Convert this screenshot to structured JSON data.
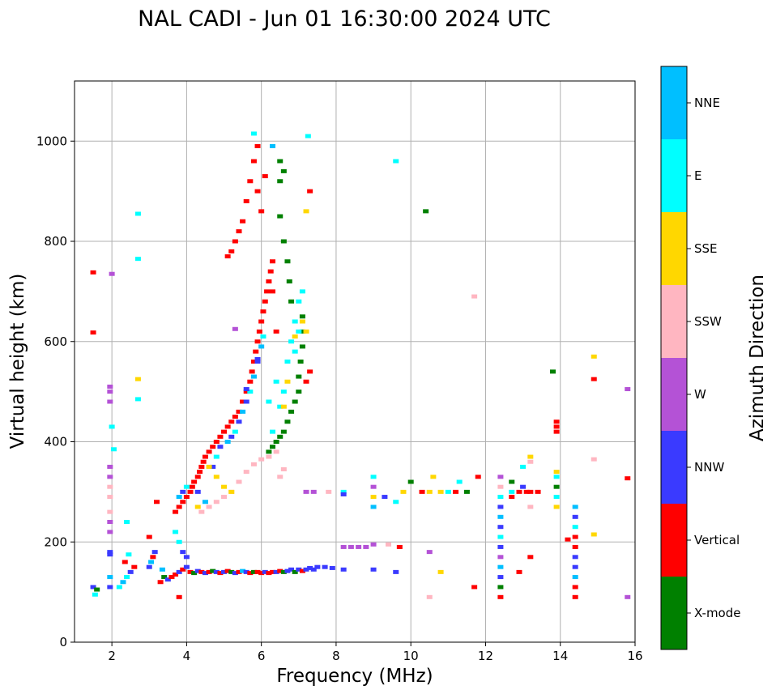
{
  "chart_data": {
    "type": "scatter",
    "title": "NAL CADI - Jun 01 16:30:00 2024 UTC",
    "xlabel": "Frequency (MHz)",
    "ylabel": "Virtual height (km)",
    "xlim": [
      1,
      16
    ],
    "ylim": [
      0,
      1120
    ],
    "xticks": [
      2,
      4,
      6,
      8,
      10,
      12,
      14,
      16
    ],
    "yticks": [
      0,
      200,
      400,
      600,
      800,
      1000
    ],
    "grid": true,
    "colorbar": {
      "label": "Azimuth Direction",
      "categories": [
        "X-mode",
        "Vertical",
        "NNW",
        "W",
        "SSW",
        "SSE",
        "E",
        "NNE"
      ],
      "colors": [
        "#008000",
        "#ff0000",
        "#3a3aff",
        "#b452d6",
        "#ffb6c1",
        "#ffd700",
        "#00ffff",
        "#00bfff"
      ]
    },
    "points": [
      [
        1.5,
        110,
        2
      ],
      [
        1.6,
        105,
        0
      ],
      [
        1.55,
        95,
        6
      ],
      [
        1.5,
        618,
        1
      ],
      [
        1.5,
        738,
        1
      ],
      [
        1.95,
        110,
        2
      ],
      [
        1.95,
        130,
        7
      ],
      [
        1.95,
        175,
        2
      ],
      [
        1.95,
        180,
        2
      ],
      [
        1.95,
        220,
        3
      ],
      [
        1.95,
        240,
        3
      ],
      [
        1.95,
        260,
        4
      ],
      [
        1.95,
        290,
        4
      ],
      [
        1.95,
        310,
        4
      ],
      [
        1.95,
        330,
        3
      ],
      [
        1.95,
        350,
        3
      ],
      [
        1.95,
        480,
        3
      ],
      [
        1.95,
        500,
        3
      ],
      [
        1.95,
        510,
        3
      ],
      [
        2.0,
        735,
        3
      ],
      [
        2.0,
        430,
        6
      ],
      [
        2.05,
        385,
        6
      ],
      [
        2.2,
        110,
        6
      ],
      [
        2.3,
        120,
        7
      ],
      [
        2.4,
        130,
        6
      ],
      [
        2.5,
        140,
        2
      ],
      [
        2.6,
        150,
        1
      ],
      [
        2.35,
        160,
        1
      ],
      [
        2.45,
        175,
        6
      ],
      [
        2.4,
        240,
        6
      ],
      [
        2.7,
        855,
        6
      ],
      [
        2.7,
        765,
        6
      ],
      [
        2.7,
        485,
        6
      ],
      [
        2.7,
        525,
        5
      ],
      [
        3.0,
        150,
        2
      ],
      [
        3.05,
        160,
        7
      ],
      [
        3.1,
        170,
        1
      ],
      [
        3.15,
        180,
        2
      ],
      [
        3.0,
        210,
        1
      ],
      [
        3.2,
        280,
        1
      ],
      [
        3.3,
        120,
        1
      ],
      [
        3.35,
        145,
        7
      ],
      [
        3.4,
        130,
        0
      ],
      [
        3.5,
        125,
        2
      ],
      [
        3.6,
        130,
        1
      ],
      [
        3.7,
        135,
        1
      ],
      [
        3.8,
        140,
        2
      ],
      [
        3.9,
        145,
        1
      ],
      [
        4.0,
        150,
        2
      ],
      [
        4.1,
        140,
        1
      ],
      [
        4.2,
        138,
        0
      ],
      [
        4.3,
        142,
        2
      ],
      [
        4.4,
        140,
        1
      ],
      [
        4.5,
        138,
        2
      ],
      [
        4.6,
        140,
        1
      ],
      [
        4.7,
        142,
        0
      ],
      [
        4.8,
        140,
        2
      ],
      [
        4.9,
        138,
        1
      ],
      [
        5.0,
        140,
        2
      ],
      [
        5.1,
        142,
        1
      ],
      [
        5.2,
        140,
        0
      ],
      [
        5.3,
        138,
        2
      ],
      [
        5.4,
        140,
        1
      ],
      [
        5.5,
        142,
        7
      ],
      [
        5.6,
        140,
        2
      ],
      [
        5.7,
        138,
        1
      ],
      [
        5.8,
        140,
        0
      ],
      [
        5.9,
        140,
        1
      ],
      [
        6.0,
        138,
        1
      ],
      [
        6.1,
        140,
        2
      ],
      [
        6.2,
        138,
        1
      ],
      [
        6.3,
        140,
        1
      ],
      [
        6.4,
        140,
        2
      ],
      [
        6.5,
        142,
        1
      ],
      [
        6.6,
        140,
        0
      ],
      [
        6.7,
        142,
        2
      ],
      [
        6.8,
        145,
        2
      ],
      [
        6.9,
        140,
        0
      ],
      [
        7.0,
        145,
        2
      ],
      [
        7.1,
        142,
        1
      ],
      [
        7.2,
        145,
        2
      ],
      [
        7.3,
        148,
        2
      ],
      [
        7.4,
        145,
        2
      ],
      [
        7.5,
        150,
        2
      ],
      [
        7.7,
        150,
        2
      ],
      [
        7.9,
        148,
        2
      ],
      [
        8.2,
        145,
        2
      ],
      [
        3.8,
        90,
        1
      ],
      [
        3.7,
        220,
        6
      ],
      [
        3.8,
        200,
        6
      ],
      [
        3.9,
        180,
        2
      ],
      [
        4.0,
        170,
        2
      ],
      [
        3.7,
        260,
        1
      ],
      [
        3.8,
        270,
        1
      ],
      [
        3.9,
        280,
        1
      ],
      [
        4.0,
        290,
        1
      ],
      [
        4.1,
        300,
        1
      ],
      [
        4.15,
        310,
        1
      ],
      [
        4.2,
        320,
        1
      ],
      [
        4.3,
        330,
        1
      ],
      [
        4.35,
        340,
        1
      ],
      [
        4.4,
        350,
        1
      ],
      [
        4.45,
        360,
        1
      ],
      [
        4.5,
        370,
        1
      ],
      [
        4.6,
        380,
        1
      ],
      [
        4.7,
        390,
        1
      ],
      [
        4.8,
        400,
        1
      ],
      [
        4.9,
        410,
        1
      ],
      [
        5.0,
        420,
        1
      ],
      [
        5.1,
        430,
        1
      ],
      [
        5.2,
        440,
        1
      ],
      [
        5.3,
        450,
        1
      ],
      [
        5.4,
        460,
        1
      ],
      [
        5.5,
        480,
        1
      ],
      [
        5.6,
        500,
        1
      ],
      [
        5.7,
        520,
        1
      ],
      [
        5.75,
        540,
        1
      ],
      [
        5.8,
        560,
        1
      ],
      [
        5.85,
        580,
        1
      ],
      [
        5.9,
        600,
        1
      ],
      [
        5.95,
        620,
        1
      ],
      [
        6.0,
        640,
        1
      ],
      [
        6.05,
        660,
        1
      ],
      [
        6.1,
        680,
        1
      ],
      [
        6.15,
        700,
        1
      ],
      [
        6.2,
        720,
        1
      ],
      [
        6.25,
        740,
        1
      ],
      [
        6.3,
        760,
        1
      ],
      [
        3.8,
        290,
        7
      ],
      [
        3.9,
        300,
        2
      ],
      [
        4.0,
        310,
        6
      ],
      [
        4.3,
        300,
        2
      ],
      [
        4.5,
        280,
        7
      ],
      [
        4.7,
        350,
        2
      ],
      [
        4.8,
        370,
        6
      ],
      [
        4.9,
        390,
        2
      ],
      [
        5.1,
        400,
        7
      ],
      [
        5.2,
        410,
        2
      ],
      [
        5.3,
        420,
        6
      ],
      [
        5.4,
        440,
        2
      ],
      [
        5.5,
        460,
        7
      ],
      [
        5.6,
        480,
        2
      ],
      [
        5.7,
        500,
        6
      ],
      [
        5.8,
        530,
        7
      ],
      [
        5.9,
        560,
        2
      ],
      [
        6.0,
        590,
        7
      ],
      [
        6.05,
        610,
        6
      ],
      [
        4.4,
        260,
        4
      ],
      [
        4.6,
        270,
        4
      ],
      [
        4.8,
        280,
        4
      ],
      [
        5.0,
        290,
        4
      ],
      [
        5.2,
        300,
        4
      ],
      [
        5.4,
        320,
        4
      ],
      [
        5.6,
        340,
        4
      ],
      [
        5.8,
        355,
        4
      ],
      [
        6.0,
        365,
        4
      ],
      [
        6.2,
        370,
        4
      ],
      [
        6.4,
        380,
        4
      ],
      [
        6.6,
        345,
        4
      ],
      [
        6.5,
        330,
        4
      ],
      [
        4.6,
        350,
        5
      ],
      [
        4.8,
        330,
        5
      ],
      [
        5.0,
        310,
        5
      ],
      [
        5.2,
        300,
        5
      ],
      [
        4.3,
        270,
        5
      ],
      [
        6.2,
        380,
        0
      ],
      [
        6.3,
        390,
        0
      ],
      [
        6.4,
        400,
        0
      ],
      [
        6.5,
        410,
        0
      ],
      [
        6.6,
        420,
        0
      ],
      [
        6.7,
        440,
        0
      ],
      [
        6.8,
        460,
        0
      ],
      [
        6.9,
        480,
        0
      ],
      [
        7.0,
        500,
        0
      ],
      [
        7.0,
        530,
        0
      ],
      [
        7.05,
        560,
        0
      ],
      [
        7.1,
        590,
        0
      ],
      [
        7.1,
        620,
        0
      ],
      [
        7.1,
        650,
        0
      ],
      [
        6.8,
        680,
        0
      ],
      [
        6.75,
        720,
        0
      ],
      [
        6.7,
        760,
        0
      ],
      [
        6.6,
        800,
        0
      ],
      [
        6.5,
        850,
        0
      ],
      [
        6.5,
        920,
        0
      ],
      [
        6.5,
        960,
        0
      ],
      [
        6.6,
        940,
        0
      ],
      [
        6.3,
        420,
        6
      ],
      [
        6.5,
        470,
        6
      ],
      [
        6.6,
        500,
        6
      ],
      [
        6.7,
        560,
        6
      ],
      [
        6.8,
        600,
        6
      ],
      [
        6.9,
        640,
        6
      ],
      [
        7.0,
        680,
        6
      ],
      [
        7.1,
        700,
        6
      ],
      [
        7.0,
        620,
        6
      ],
      [
        6.9,
        580,
        6
      ],
      [
        6.4,
        520,
        6
      ],
      [
        6.2,
        480,
        6
      ],
      [
        6.6,
        470,
        5
      ],
      [
        6.7,
        520,
        5
      ],
      [
        7.1,
        640,
        5
      ],
      [
        7.2,
        620,
        5
      ],
      [
        6.9,
        610,
        5
      ],
      [
        7.2,
        860,
        5
      ],
      [
        7.3,
        900,
        1
      ],
      [
        7.25,
        1010,
        6
      ],
      [
        6.3,
        990,
        7
      ],
      [
        5.8,
        1015,
        6
      ],
      [
        6.0,
        860,
        1
      ],
      [
        5.9,
        900,
        1
      ],
      [
        6.1,
        930,
        1
      ],
      [
        5.5,
        840,
        1
      ],
      [
        5.4,
        820,
        1
      ],
      [
        5.3,
        800,
        1
      ],
      [
        5.2,
        780,
        1
      ],
      [
        5.1,
        770,
        1
      ],
      [
        5.6,
        880,
        1
      ],
      [
        5.7,
        920,
        1
      ],
      [
        5.8,
        960,
        1
      ],
      [
        5.9,
        990,
        1
      ],
      [
        6.4,
        620,
        1
      ],
      [
        6.3,
        700,
        1
      ],
      [
        7.3,
        540,
        1
      ],
      [
        7.2,
        520,
        1
      ],
      [
        5.3,
        625,
        3
      ],
      [
        5.9,
        565,
        2
      ],
      [
        5.6,
        505,
        2
      ],
      [
        7.2,
        300,
        3
      ],
      [
        7.4,
        300,
        3
      ],
      [
        7.8,
        300,
        4
      ],
      [
        8.2,
        300,
        6
      ],
      [
        8.2,
        295,
        2
      ],
      [
        8.2,
        190,
        3
      ],
      [
        8.4,
        190,
        3
      ],
      [
        8.6,
        190,
        3
      ],
      [
        8.8,
        190,
        3
      ],
      [
        9.0,
        195,
        3
      ],
      [
        9.4,
        195,
        4
      ],
      [
        9.7,
        190,
        1
      ],
      [
        9.0,
        145,
        2
      ],
      [
        9.6,
        140,
        2
      ],
      [
        10.5,
        180,
        3
      ],
      [
        10.8,
        140,
        5
      ],
      [
        10.5,
        90,
        4
      ],
      [
        9.0,
        270,
        7
      ],
      [
        9.0,
        290,
        5
      ],
      [
        9.0,
        310,
        3
      ],
      [
        9.0,
        330,
        6
      ],
      [
        9.3,
        290,
        2
      ],
      [
        9.6,
        280,
        6
      ],
      [
        9.8,
        300,
        5
      ],
      [
        10.3,
        300,
        1
      ],
      [
        10.5,
        300,
        5
      ],
      [
        10.6,
        330,
        5
      ],
      [
        10.8,
        300,
        5
      ],
      [
        11.0,
        300,
        6
      ],
      [
        11.2,
        300,
        1
      ],
      [
        11.3,
        320,
        6
      ],
      [
        11.5,
        300,
        0
      ],
      [
        11.8,
        330,
        1
      ],
      [
        10.0,
        320,
        0
      ],
      [
        10.4,
        860,
        0
      ],
      [
        9.6,
        960,
        6
      ],
      [
        11.7,
        690,
        4
      ],
      [
        11.7,
        110,
        1
      ],
      [
        12.4,
        90,
        1
      ],
      [
        12.4,
        110,
        0
      ],
      [
        12.4,
        130,
        2
      ],
      [
        12.4,
        150,
        7
      ],
      [
        12.4,
        170,
        3
      ],
      [
        12.4,
        190,
        2
      ],
      [
        12.4,
        210,
        6
      ],
      [
        12.4,
        230,
        2
      ],
      [
        12.4,
        250,
        7
      ],
      [
        12.4,
        270,
        2
      ],
      [
        12.4,
        290,
        6
      ],
      [
        12.4,
        310,
        4
      ],
      [
        12.4,
        330,
        3
      ],
      [
        12.7,
        290,
        1
      ],
      [
        12.7,
        300,
        6
      ],
      [
        12.7,
        320,
        0
      ],
      [
        12.9,
        300,
        1
      ],
      [
        13.0,
        310,
        2
      ],
      [
        13.1,
        300,
        1
      ],
      [
        13.2,
        300,
        1
      ],
      [
        13.4,
        300,
        1
      ],
      [
        13.0,
        350,
        6
      ],
      [
        13.2,
        370,
        5
      ],
      [
        13.2,
        360,
        4
      ],
      [
        13.2,
        270,
        4
      ],
      [
        13.2,
        170,
        1
      ],
      [
        12.9,
        140,
        1
      ],
      [
        13.8,
        540,
        0
      ],
      [
        13.9,
        420,
        1
      ],
      [
        13.9,
        430,
        1
      ],
      [
        13.9,
        440,
        1
      ],
      [
        13.9,
        270,
        5
      ],
      [
        13.9,
        290,
        6
      ],
      [
        13.9,
        310,
        0
      ],
      [
        13.9,
        330,
        6
      ],
      [
        13.9,
        340,
        5
      ],
      [
        14.4,
        90,
        1
      ],
      [
        14.4,
        110,
        1
      ],
      [
        14.4,
        130,
        7
      ],
      [
        14.4,
        150,
        2
      ],
      [
        14.4,
        170,
        2
      ],
      [
        14.4,
        190,
        1
      ],
      [
        14.4,
        210,
        1
      ],
      [
        14.4,
        230,
        6
      ],
      [
        14.4,
        250,
        2
      ],
      [
        14.4,
        270,
        7
      ],
      [
        14.2,
        205,
        1
      ],
      [
        14.9,
        570,
        5
      ],
      [
        14.9,
        525,
        1
      ],
      [
        14.9,
        365,
        4
      ],
      [
        14.9,
        215,
        5
      ],
      [
        15.8,
        505,
        3
      ],
      [
        15.8,
        327,
        1
      ],
      [
        15.8,
        90,
        3
      ]
    ]
  }
}
